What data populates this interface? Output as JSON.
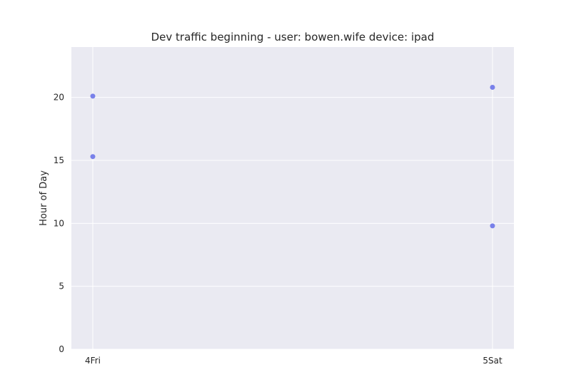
{
  "chart_data": {
    "type": "scatter",
    "title": "Dev traffic beginning - user: bowen.wife device: ipad",
    "xlabel": "",
    "ylabel": "Hour of Day",
    "x_categories": [
      "4Fri",
      "5Sat"
    ],
    "y_ticks": [
      0,
      5,
      10,
      15,
      20
    ],
    "ylim": [
      0,
      24
    ],
    "grid": true,
    "background_color": "#EAEAF2",
    "grid_color": "#FFFFFF",
    "marker_color": "#6B74E8",
    "points": [
      {
        "x": "4Fri",
        "y": 20.1
      },
      {
        "x": "4Fri",
        "y": 15.3
      },
      {
        "x": "5Sat",
        "y": 20.8
      },
      {
        "x": "5Sat",
        "y": 9.8
      }
    ]
  }
}
